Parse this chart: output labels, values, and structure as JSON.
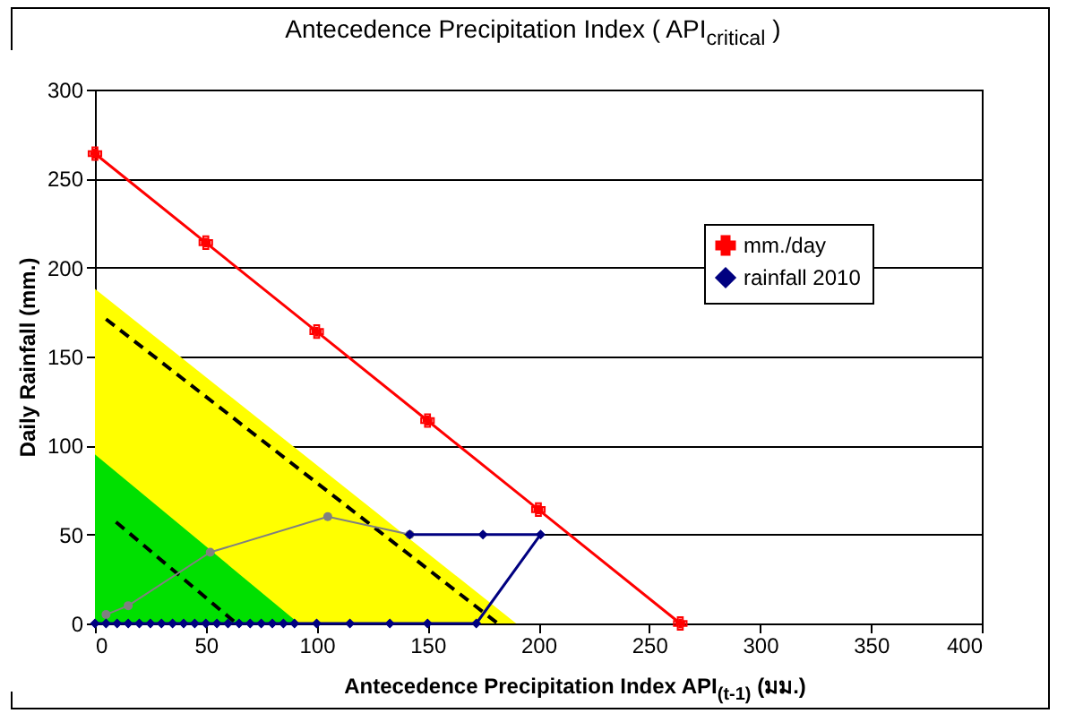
{
  "chart_data": {
    "type": "line",
    "title": "Antecedence Precipitation Index ( API$_{critical}$ )",
    "xlabel": "Antecedence Precipitation Index API$_{(t-1)}$ (มม.)",
    "ylabel": "Daily Rainfall (mm.)",
    "xlim": [
      0,
      400
    ],
    "xticks": [
      0,
      50,
      100,
      150,
      200,
      250,
      300,
      350,
      400
    ],
    "ylim": [
      0,
      300
    ],
    "yticks": [
      0,
      50,
      100,
      150,
      200,
      250,
      300
    ],
    "grid": "y",
    "legend": "right",
    "series": [
      {
        "type": "area",
        "color": "#ffff00",
        "x": [
          0,
          190
        ],
        "values": [
          188,
          0
        ]
      },
      {
        "type": "area",
        "color": "#00e000",
        "x": [
          0,
          92
        ],
        "values": [
          95,
          0
        ]
      },
      {
        "color": "#000000",
        "line_style": "dashed",
        "x": [
          5,
          181.7
        ],
        "values": [
          171,
          0
        ]
      },
      {
        "color": "#000000",
        "line_style": "dashed",
        "x": [
          9.5,
          63.8
        ],
        "values": [
          57,
          0
        ]
      },
      {
        "color": "#808080",
        "marker": "circle",
        "x": [
          142,
          105,
          52,
          15,
          5
        ],
        "values": [
          50,
          60,
          40,
          10,
          5
        ]
      },
      {
        "name": "mm./day",
        "color": "#ff0000",
        "marker": "cross",
        "x": [
          0,
          50,
          100,
          150,
          200,
          264
        ],
        "values": [
          264,
          214,
          164,
          114,
          64,
          0
        ]
      },
      {
        "name": "rainfall 2010",
        "color": "#000080",
        "marker": "diamond",
        "x": [
          0,
          5,
          10,
          15,
          20,
          25,
          30,
          35,
          40,
          45,
          50,
          55,
          60,
          65,
          70,
          75,
          80,
          85,
          90,
          100,
          115,
          133,
          150,
          172,
          201,
          175,
          142
        ],
        "values": [
          0,
          0,
          0,
          0,
          0,
          0,
          0,
          0,
          0,
          0,
          0,
          0,
          0,
          0,
          0,
          0,
          0,
          0,
          0,
          0,
          0,
          0,
          0,
          0,
          50,
          50,
          50
        ]
      }
    ]
  }
}
